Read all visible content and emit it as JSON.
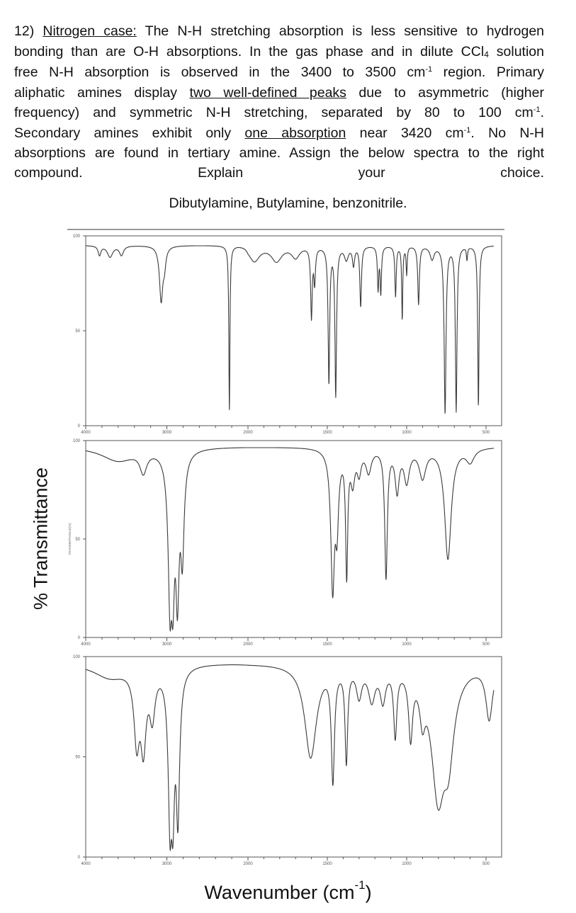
{
  "question": {
    "lines": [
      [
        {
          "t": "12) "
        },
        {
          "t": "Nitrogen case:",
          "u": true
        },
        {
          "t": " The N-H stretching absorption is less sensitive to hydrogen"
        }
      ],
      [
        {
          "t": "bonding than are O-H absorptions. In the gas phase and in dilute CCl"
        },
        {
          "t": "4",
          "sub": true
        },
        {
          "t": " solution"
        }
      ],
      [
        {
          "t": "free N-H absorption is observed in the 3400 to 3500 cm"
        },
        {
          "t": "-1",
          "sup": true
        },
        {
          "t": " region. Primary"
        }
      ],
      [
        {
          "t": "aliphatic amines display "
        },
        {
          "t": "two well-defined peaks",
          "u": true
        },
        {
          "t": " due to asymmetric (higher"
        }
      ],
      [
        {
          "t": "frequency) and symmetric N-H stretching, separated by 80 to 100 cm"
        },
        {
          "t": "-1",
          "sup": true
        },
        {
          "t": "."
        }
      ],
      [
        {
          "t": "Secondary amines exhibit only "
        },
        {
          "t": "one absorption",
          "u": true
        },
        {
          "t": " near 3420 cm"
        },
        {
          "t": "-1",
          "sup": true
        },
        {
          "t": ". No N-H"
        }
      ],
      [
        {
          "t": "absorptions are found in tertiary amine. Assign the below spectra to the right"
        }
      ],
      [
        {
          "t": "compound. Explain your choice."
        }
      ]
    ],
    "compounds": "Dibutylamine, Butylamine, benzonitrile."
  },
  "axis_labels": {
    "y": "% Transmittance",
    "x_main": "Wavenumber (cm",
    "x_sup": "-1",
    "x_close": ")",
    "inner_y": "TRANSMITTANCE(%)"
  },
  "chart_data": [
    {
      "type": "line",
      "xlabel": "",
      "ylabel": "",
      "xlim": [
        4000,
        450
      ],
      "ylim": [
        0,
        100
      ],
      "x_ticks": [
        "4000",
        "3000",
        "2000",
        "1500",
        "1000",
        "500"
      ],
      "y_ticks": [
        "100",
        "50",
        "0"
      ],
      "baseline": 95,
      "peaks": [
        [
          3830,
          90,
          20
        ],
        [
          3700,
          89,
          40
        ],
        [
          3560,
          90,
          30
        ],
        [
          3070,
          66,
          25
        ],
        [
          3030,
          86,
          20
        ],
        [
          2229,
          8,
          8
        ],
        [
          1960,
          87,
          40
        ],
        [
          1820,
          87,
          40
        ],
        [
          1700,
          89,
          30
        ],
        [
          1600,
          57,
          6
        ],
        [
          1580,
          76,
          6
        ],
        [
          1490,
          22,
          6
        ],
        [
          1447,
          15,
          6
        ],
        [
          1380,
          88,
          15
        ],
        [
          1335,
          85,
          8
        ],
        [
          1290,
          63,
          6
        ],
        [
          1180,
          72,
          5
        ],
        [
          1163,
          70,
          5
        ],
        [
          1070,
          68,
          5
        ],
        [
          1028,
          56,
          4
        ],
        [
          1000,
          80,
          4
        ],
        [
          925,
          64,
          6
        ],
        [
          840,
          88,
          15
        ],
        [
          758,
          6,
          7
        ],
        [
          688,
          7,
          6
        ],
        [
          620,
          88,
          4
        ],
        [
          548,
          10,
          5
        ]
      ]
    },
    {
      "type": "line",
      "xlabel": "",
      "ylabel": "TRANSMITTANCE(%)",
      "xlim": [
        4000,
        450
      ],
      "ylim": [
        0,
        100
      ],
      "x_ticks": [
        "4000",
        "3000",
        "2000",
        "1500",
        "1000",
        "500"
      ],
      "y_ticks": [
        "100",
        "50",
        "0"
      ],
      "baseline": 97,
      "peaks": [
        [
          3600,
          90,
          250
        ],
        [
          3290,
          86,
          50
        ],
        [
          2958,
          6,
          25
        ],
        [
          2928,
          8,
          25
        ],
        [
          2870,
          12,
          25
        ],
        [
          2810,
          40,
          25
        ],
        [
          1466,
          22,
          14
        ],
        [
          1440,
          55,
          12
        ],
        [
          1378,
          30,
          8
        ],
        [
          1340,
          80,
          15
        ],
        [
          1300,
          85,
          15
        ],
        [
          1240,
          85,
          20
        ],
        [
          1130,
          30,
          10
        ],
        [
          1060,
          75,
          15
        ],
        [
          1000,
          80,
          20
        ],
        [
          900,
          82,
          25
        ],
        [
          740,
          40,
          25
        ],
        [
          600,
          90,
          30
        ]
      ]
    },
    {
      "type": "line",
      "xlabel": "",
      "ylabel": "",
      "xlim": [
        4000,
        450
      ],
      "ylim": [
        0,
        100
      ],
      "x_ticks": [
        "4000",
        "3000",
        "2000",
        "1500",
        "1000",
        "500"
      ],
      "y_ticks": [
        "100",
        "50",
        "0"
      ],
      "baseline": 97,
      "peaks": [
        [
          3700,
          90,
          250
        ],
        [
          3370,
          58,
          40
        ],
        [
          3290,
          55,
          40
        ],
        [
          3180,
          72,
          40
        ],
        [
          2958,
          6,
          25
        ],
        [
          2928,
          8,
          25
        ],
        [
          2865,
          15,
          25
        ],
        [
          1605,
          50,
          45
        ],
        [
          1465,
          38,
          12
        ],
        [
          1380,
          48,
          10
        ],
        [
          1300,
          82,
          20
        ],
        [
          1220,
          80,
          25
        ],
        [
          1150,
          80,
          20
        ],
        [
          1072,
          62,
          12
        ],
        [
          975,
          62,
          15
        ],
        [
          900,
          75,
          20
        ],
        [
          800,
          28,
          50
        ],
        [
          740,
          50,
          40
        ],
        [
          480,
          70,
          25
        ]
      ]
    }
  ],
  "colors": {
    "trace": "#3a3a3a",
    "frame": "#555555"
  }
}
